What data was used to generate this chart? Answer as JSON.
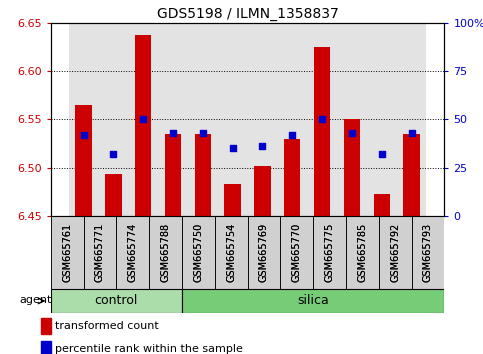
{
  "title": "GDS5198 / ILMN_1358837",
  "samples": [
    "GSM665761",
    "GSM665771",
    "GSM665774",
    "GSM665788",
    "GSM665750",
    "GSM665754",
    "GSM665769",
    "GSM665770",
    "GSM665775",
    "GSM665785",
    "GSM665792",
    "GSM665793"
  ],
  "red_values": [
    6.565,
    6.493,
    6.638,
    6.535,
    6.535,
    6.483,
    6.502,
    6.53,
    6.625,
    6.55,
    6.473,
    6.535
  ],
  "blue_pct": [
    42,
    32,
    50,
    43,
    43,
    35,
    36,
    42,
    50,
    43,
    32,
    43
  ],
  "ylim_left": [
    6.45,
    6.65
  ],
  "ylim_right": [
    0,
    100
  ],
  "yticks_left": [
    6.45,
    6.5,
    6.55,
    6.6,
    6.65
  ],
  "yticks_right": [
    0,
    25,
    50,
    75,
    100
  ],
  "bar_color": "#cc0000",
  "dot_color": "#0000cc",
  "control_color": "#aaddaa",
  "silica_color": "#77cc77",
  "agent_label": "agent",
  "control_label": "control",
  "silica_label": "silica",
  "ctrl_n": 4,
  "silica_n": 8,
  "legend_red": "transformed count",
  "legend_blue": "percentile rank within the sample",
  "baseline": 6.45,
  "col_bg_color": "#cccccc",
  "grid_yticks": [
    6.5,
    6.55,
    6.6
  ]
}
